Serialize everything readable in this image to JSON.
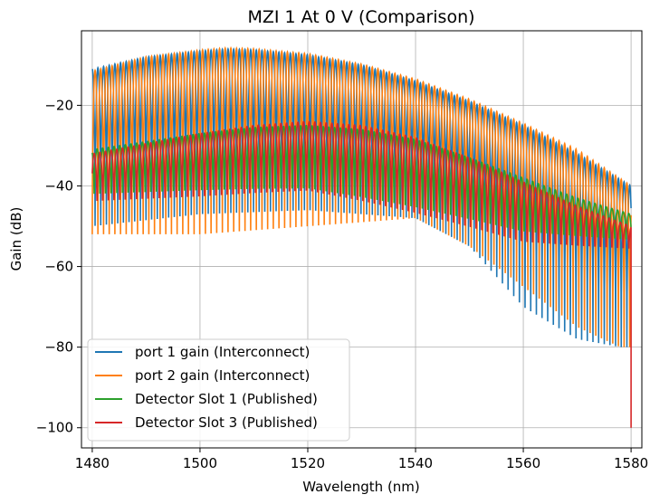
{
  "chart_data": {
    "type": "line",
    "title": "MZI 1 At 0 V (Comparison)",
    "xlabel": "Wavelength (nm)",
    "ylabel": "Gain (dB)",
    "xlim": [
      1478,
      1582
    ],
    "ylim": [
      -105,
      -1.5
    ],
    "xticks": [
      1480,
      1500,
      1520,
      1540,
      1560,
      1580
    ],
    "yticks": [
      -100,
      -80,
      -60,
      -40,
      -20
    ],
    "grid": true,
    "legend_position": "lower-left",
    "fringe_period_nm": 1.05,
    "series": [
      {
        "name": "port 1 gain (Interconnect)",
        "color": "#1f77b4",
        "phase": 0.0,
        "envelope": {
          "x": [
            1480,
            1490,
            1500,
            1505,
            1510,
            1520,
            1530,
            1540,
            1550,
            1560,
            1570,
            1580
          ],
          "y": [
            -11,
            -8,
            -6.5,
            -6,
            -6.2,
            -7.5,
            -10,
            -14,
            -19,
            -25,
            -32,
            -40
          ]
        },
        "trough": {
          "x": [
            1480,
            1500,
            1520,
            1540,
            1550,
            1560,
            1570,
            1578,
            1580
          ],
          "y": [
            -50,
            -47,
            -46,
            -48,
            -55,
            -70,
            -78,
            -80,
            -80
          ]
        }
      },
      {
        "name": "port 2 gain (Interconnect)",
        "color": "#ff7f0e",
        "phase": 0.5,
        "envelope": {
          "x": [
            1480,
            1490,
            1500,
            1505,
            1510,
            1520,
            1530,
            1540,
            1550,
            1560,
            1570,
            1580
          ],
          "y": [
            -11.5,
            -8,
            -6.3,
            -5.8,
            -6,
            -7.2,
            -9.8,
            -13.5,
            -18.5,
            -24.5,
            -31,
            -40
          ]
        },
        "trough": {
          "x": [
            1480,
            1500,
            1520,
            1540,
            1550,
            1560,
            1570,
            1578,
            1580
          ],
          "y": [
            -52,
            -52,
            -50,
            -48,
            -55,
            -65,
            -75,
            -80,
            -80
          ]
        }
      },
      {
        "name": "Detector Slot 1 (Published)",
        "color": "#2ca02c",
        "phase": 0.15,
        "envelope": {
          "x": [
            1480,
            1490,
            1500,
            1510,
            1520,
            1530,
            1540,
            1550,
            1560,
            1570,
            1580
          ],
          "y": [
            -31,
            -29,
            -27,
            -25.5,
            -25,
            -26,
            -28.5,
            -33,
            -38,
            -43,
            -47
          ]
        },
        "trough": {
          "x": [
            1480,
            1500,
            1520,
            1540,
            1560,
            1580
          ],
          "y": [
            -45,
            -45,
            -45,
            -50,
            -55,
            -55
          ]
        }
      },
      {
        "name": "Detector Slot 3 (Published)",
        "color": "#d62728",
        "phase": 0.65,
        "envelope": {
          "x": [
            1480,
            1490,
            1500,
            1510,
            1520,
            1530,
            1540,
            1550,
            1560,
            1570,
            1580
          ],
          "y": [
            -32,
            -29.5,
            -27,
            -25,
            -24,
            -25,
            -28,
            -33,
            -39,
            -45,
            -50
          ]
        },
        "trough": {
          "x": [
            1480,
            1500,
            1520,
            1540,
            1560,
            1580
          ],
          "y": [
            -47,
            -47,
            -46,
            -52,
            -58,
            -57
          ]
        },
        "final_drop": -100
      }
    ]
  }
}
